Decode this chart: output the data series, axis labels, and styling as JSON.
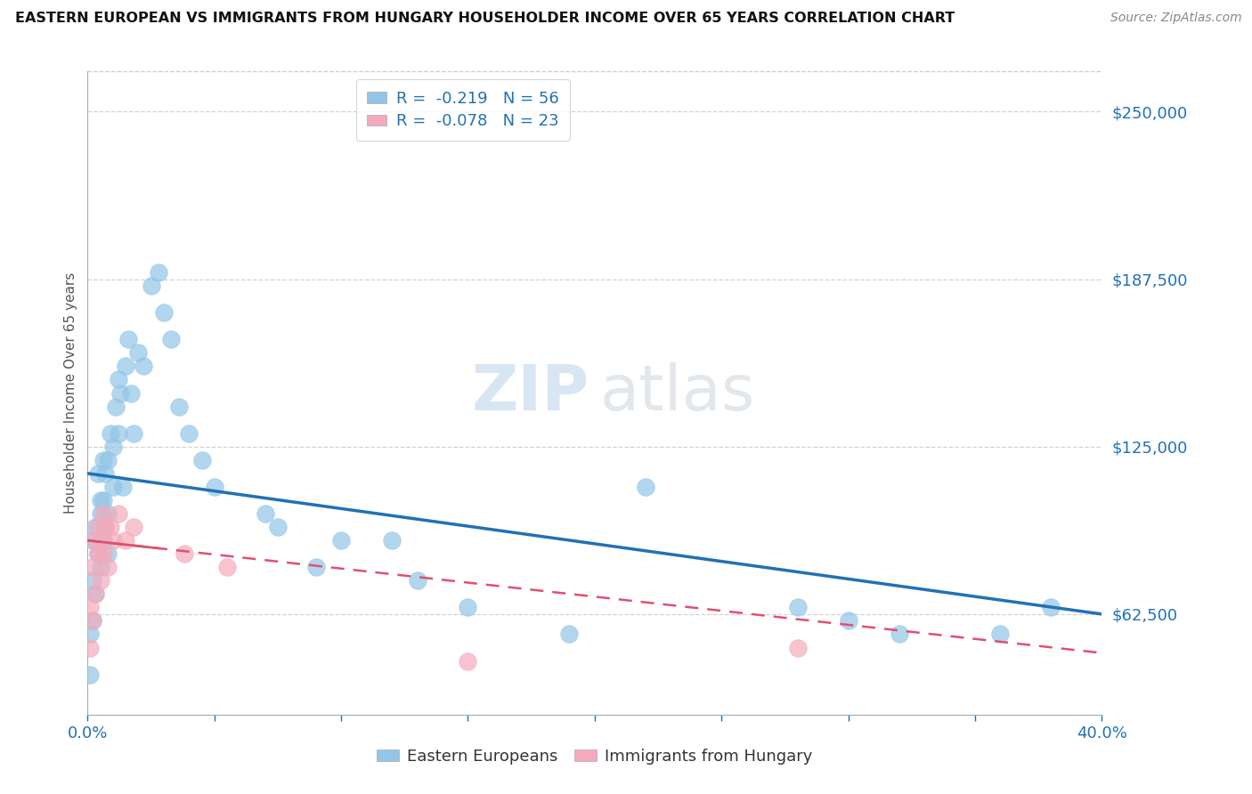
{
  "title": "EASTERN EUROPEAN VS IMMIGRANTS FROM HUNGARY HOUSEHOLDER INCOME OVER 65 YEARS CORRELATION CHART",
  "source": "Source: ZipAtlas.com",
  "ylabel": "Householder Income Over 65 years",
  "xlim": [
    0.0,
    0.4
  ],
  "ylim": [
    25000,
    265000
  ],
  "yticks": [
    62500,
    125000,
    187500,
    250000
  ],
  "ytick_labels": [
    "$62,500",
    "$125,000",
    "$187,500",
    "$250,000"
  ],
  "xticks": [
    0.0,
    0.05,
    0.1,
    0.15,
    0.2,
    0.25,
    0.3,
    0.35,
    0.4
  ],
  "blue_color": "#92C5E8",
  "pink_color": "#F5AABB",
  "blue_line_color": "#2171B5",
  "pink_line_color": "#E05070",
  "R_blue": -0.219,
  "N_blue": 56,
  "R_pink": -0.078,
  "N_pink": 23,
  "blue_x": [
    0.001,
    0.001,
    0.002,
    0.002,
    0.002,
    0.003,
    0.003,
    0.004,
    0.004,
    0.005,
    0.005,
    0.005,
    0.006,
    0.006,
    0.006,
    0.007,
    0.007,
    0.008,
    0.008,
    0.008,
    0.009,
    0.01,
    0.01,
    0.011,
    0.012,
    0.012,
    0.013,
    0.014,
    0.015,
    0.016,
    0.017,
    0.018,
    0.02,
    0.022,
    0.025,
    0.028,
    0.03,
    0.033,
    0.036,
    0.04,
    0.045,
    0.05,
    0.07,
    0.075,
    0.09,
    0.1,
    0.12,
    0.13,
    0.15,
    0.19,
    0.22,
    0.28,
    0.3,
    0.32,
    0.36,
    0.38
  ],
  "blue_y": [
    55000,
    40000,
    60000,
    75000,
    90000,
    70000,
    95000,
    85000,
    115000,
    80000,
    100000,
    105000,
    90000,
    105000,
    120000,
    95000,
    115000,
    85000,
    100000,
    120000,
    130000,
    110000,
    125000,
    140000,
    130000,
    150000,
    145000,
    110000,
    155000,
    165000,
    145000,
    130000,
    160000,
    155000,
    185000,
    190000,
    175000,
    165000,
    140000,
    130000,
    120000,
    110000,
    100000,
    95000,
    80000,
    90000,
    90000,
    75000,
    65000,
    55000,
    110000,
    65000,
    60000,
    55000,
    55000,
    65000
  ],
  "pink_x": [
    0.001,
    0.001,
    0.002,
    0.002,
    0.003,
    0.003,
    0.004,
    0.004,
    0.005,
    0.005,
    0.006,
    0.006,
    0.007,
    0.008,
    0.009,
    0.01,
    0.012,
    0.015,
    0.018,
    0.038,
    0.055,
    0.15,
    0.28
  ],
  "pink_y": [
    50000,
    65000,
    60000,
    80000,
    70000,
    90000,
    85000,
    95000,
    75000,
    90000,
    85000,
    100000,
    95000,
    80000,
    95000,
    90000,
    100000,
    90000,
    95000,
    85000,
    80000,
    45000,
    50000
  ],
  "watermark_zip": "ZIP",
  "watermark_atlas": "atlas",
  "background_color": "#FFFFFF",
  "grid_color": "#C8C8C8"
}
